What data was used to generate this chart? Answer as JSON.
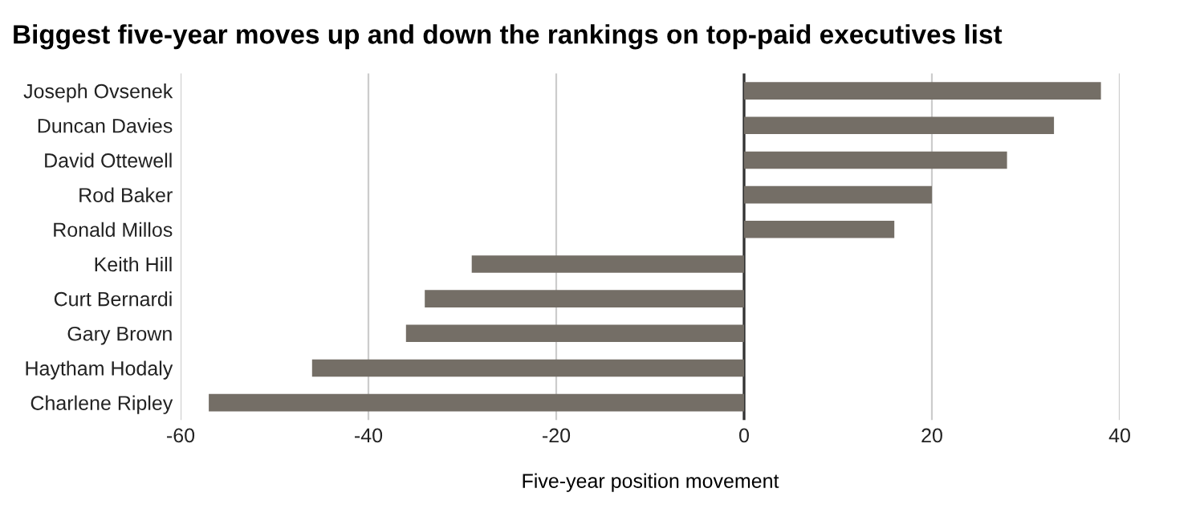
{
  "chart_data": {
    "type": "bar",
    "orientation": "horizontal",
    "title": "Biggest five-year moves up and down the rankings on top-paid executives list",
    "xlabel": "Five-year position movement",
    "categories": [
      "Joseph Ovsenek",
      "Duncan Davies",
      "David Ottewell",
      "Rod Baker",
      "Ronald Millos",
      "Keith Hill",
      "Curt Bernardi",
      "Gary Brown",
      "Haytham Hodaly",
      "Charlene Ripley"
    ],
    "values": [
      38,
      33,
      28,
      20,
      16,
      -29,
      -34,
      -36,
      -46,
      -57
    ],
    "color": "#746e66",
    "xlim": [
      -60,
      40
    ],
    "xticks": [
      -60,
      -40,
      -20,
      0,
      20,
      40
    ],
    "grid": "x"
  }
}
